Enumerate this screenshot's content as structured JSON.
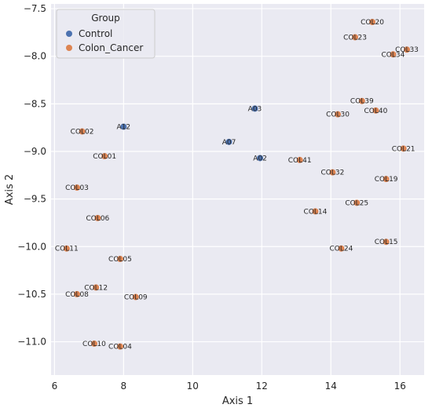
{
  "chart_data": {
    "type": "scatter",
    "title": "",
    "xlabel": "Axis 1",
    "ylabel": "Axis 2",
    "xlim": [
      5.9,
      16.7
    ],
    "ylim": [
      -11.35,
      -7.45
    ],
    "xticks": [
      6,
      8,
      10,
      12,
      14,
      16
    ],
    "yticks": [
      -11.0,
      -10.5,
      -10.0,
      -9.5,
      -9.0,
      -8.5,
      -8.0,
      -7.5
    ],
    "grid": true,
    "legend": {
      "title": "Group",
      "placement": "top-left",
      "entries": [
        "Control",
        "Colon_Cancer"
      ]
    },
    "colors": {
      "Control": "#4c72b0",
      "Colon_Cancer": "#dd8452"
    },
    "series": [
      {
        "name": "Control",
        "points": [
          {
            "label": "A12",
            "x": 8.0,
            "y": -8.74
          },
          {
            "label": "A03",
            "x": 11.8,
            "y": -8.55
          },
          {
            "label": "A07",
            "x": 11.05,
            "y": -8.9
          },
          {
            "label": "A02",
            "x": 11.95,
            "y": -9.07
          }
        ]
      },
      {
        "name": "Colon_Cancer",
        "points": [
          {
            "label": "COL20",
            "x": 15.2,
            "y": -7.64
          },
          {
            "label": "COL23",
            "x": 14.7,
            "y": -7.8
          },
          {
            "label": "COL33",
            "x": 16.2,
            "y": -7.93
          },
          {
            "label": "COL34",
            "x": 15.8,
            "y": -7.98
          },
          {
            "label": "COL39",
            "x": 14.9,
            "y": -8.47
          },
          {
            "label": "COL40",
            "x": 15.3,
            "y": -8.57
          },
          {
            "label": "COL30",
            "x": 14.2,
            "y": -8.61
          },
          {
            "label": "COL02",
            "x": 6.8,
            "y": -8.79
          },
          {
            "label": "COL21",
            "x": 16.1,
            "y": -8.97
          },
          {
            "label": "COL01",
            "x": 7.45,
            "y": -9.05
          },
          {
            "label": "COL41",
            "x": 13.1,
            "y": -9.09
          },
          {
            "label": "COL32",
            "x": 14.05,
            "y": -9.22
          },
          {
            "label": "COL19",
            "x": 15.6,
            "y": -9.29
          },
          {
            "label": "COL03",
            "x": 6.65,
            "y": -9.38
          },
          {
            "label": "COL25",
            "x": 14.75,
            "y": -9.54
          },
          {
            "label": "COL14",
            "x": 13.55,
            "y": -9.63
          },
          {
            "label": "COL06",
            "x": 7.25,
            "y": -9.7
          },
          {
            "label": "COL15",
            "x": 15.6,
            "y": -9.95
          },
          {
            "label": "COL11",
            "x": 6.35,
            "y": -10.02
          },
          {
            "label": "COL24",
            "x": 14.3,
            "y": -10.02
          },
          {
            "label": "COL05",
            "x": 7.9,
            "y": -10.13
          },
          {
            "label": "COL12",
            "x": 7.2,
            "y": -10.43
          },
          {
            "label": "COL08",
            "x": 6.65,
            "y": -10.5
          },
          {
            "label": "COL09",
            "x": 8.35,
            "y": -10.53
          },
          {
            "label": "COL10",
            "x": 7.15,
            "y": -11.02
          },
          {
            "label": "COL04",
            "x": 7.9,
            "y": -11.05
          }
        ]
      }
    ]
  }
}
